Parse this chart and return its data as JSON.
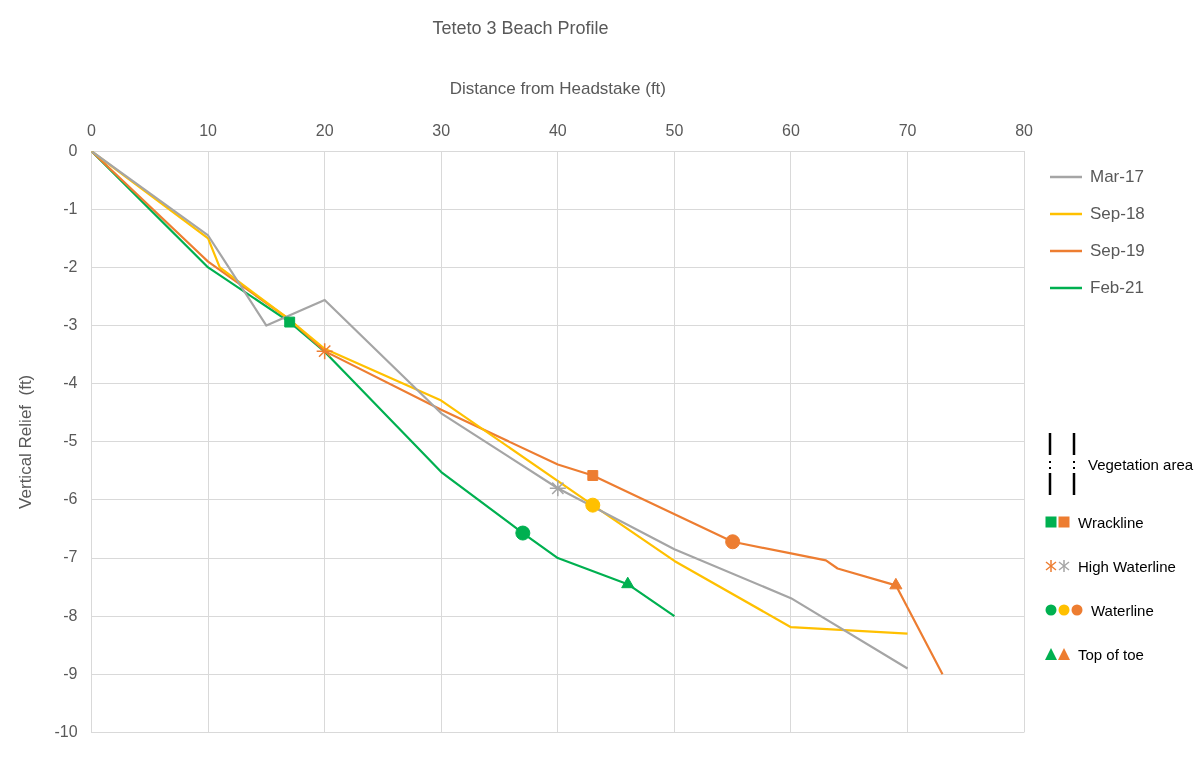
{
  "chart_data": {
    "type": "line",
    "title": "Teteto 3 Beach Profile",
    "xlabel": "Distance from Headstake (ft)",
    "ylabel": "Vertical Relief  (ft)",
    "xlim": [
      0,
      80
    ],
    "xticks": [
      0,
      10,
      20,
      30,
      40,
      50,
      60,
      70,
      80
    ],
    "ylim": [
      -10,
      0
    ],
    "yticks": [
      -10,
      -9,
      -8,
      -7,
      -6,
      -5,
      -4,
      -3,
      -2,
      -1,
      0
    ],
    "grid": true,
    "legend": "right",
    "series": [
      {
        "name": "Mar-17",
        "color": "#a5a5a5",
        "marker": "none",
        "x": [
          0,
          10,
          15,
          20,
          30,
          40,
          50,
          60,
          70
        ],
        "values": [
          0,
          -1.45,
          -3.0,
          -2.56,
          -4.51,
          -5.8,
          -6.85,
          -7.69,
          -8.9
        ]
      },
      {
        "name": "Sep-18",
        "color": "#ffc000",
        "marker": "none",
        "x": [
          0,
          10,
          11,
          17,
          20,
          30,
          43,
          50,
          60,
          70
        ],
        "values": [
          0,
          -1.5,
          -2.0,
          -2.9,
          -3.4,
          -4.29,
          -6.09,
          -7.05,
          -8.19,
          -8.3
        ]
      },
      {
        "name": "Sep-19",
        "color": "#ed7d31",
        "marker": "none",
        "x": [
          0,
          10,
          17,
          20,
          30,
          40,
          43,
          55,
          60,
          63,
          64,
          69,
          73
        ],
        "values": [
          0,
          -1.9,
          -2.9,
          -3.44,
          -4.45,
          -5.39,
          -5.58,
          -6.72,
          -6.92,
          -7.04,
          -7.18,
          -7.47,
          -9.0
        ]
      },
      {
        "name": "Feb-21",
        "color": "#00b050",
        "marker": "none",
        "x": [
          0,
          10,
          17,
          20,
          30,
          37,
          40,
          46,
          50
        ],
        "values": [
          0,
          -2.0,
          -2.94,
          -3.45,
          -5.52,
          -6.57,
          -7.0,
          -7.45,
          -8.0
        ]
      },
      {
        "name": "Wrackline",
        "type": "scatter",
        "marker": "square",
        "x": [
          17,
          43
        ],
        "values": [
          -2.94,
          -5.58
        ],
        "colors": [
          "#00b050",
          "#ed7d31"
        ]
      },
      {
        "name": "High Waterline",
        "type": "scatter",
        "marker": "cross",
        "x": [
          20,
          40
        ],
        "values": [
          -3.44,
          -5.8
        ],
        "colors": [
          "#ed7d31",
          "#a5a5a5"
        ]
      },
      {
        "name": "Waterline",
        "type": "scatter",
        "marker": "circle",
        "x": [
          37,
          43,
          55
        ],
        "values": [
          -6.57,
          -6.09,
          -6.72
        ],
        "colors": [
          "#00b050",
          "#ffc000",
          "#ed7d31"
        ]
      },
      {
        "name": "Top of toe",
        "type": "scatter",
        "marker": "triangle",
        "x": [
          46,
          69
        ],
        "values": [
          -7.45,
          -7.47
        ],
        "colors": [
          "#00b050",
          "#ed7d31"
        ]
      }
    ],
    "annotations": [
      "Vegetation area"
    ]
  }
}
